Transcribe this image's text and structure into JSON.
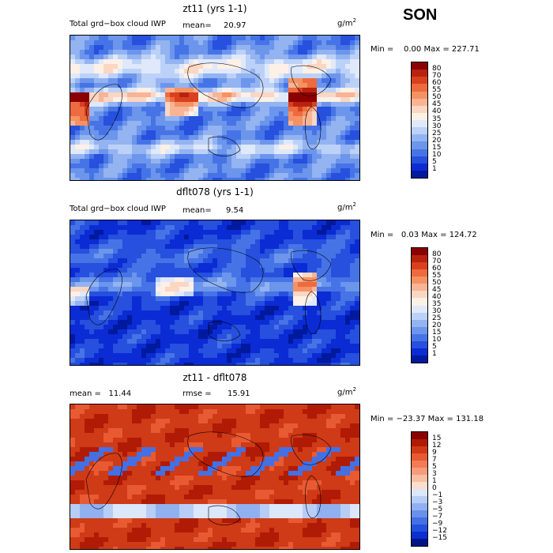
{
  "season": "SON",
  "panels": [
    {
      "title": "zt11 (yrs 1-1)",
      "left_label": "Total grd−box cloud IWP",
      "stat_label": "mean=",
      "stat_value": "20.97",
      "units": "g/m",
      "units_exp": "2",
      "minmax": "Min =    0.00 Max = 227.71",
      "palette": "abs",
      "colorbar_labels": [
        "80",
        "70",
        "60",
        "55",
        "50",
        "45",
        "40",
        "35",
        "30",
        "25",
        "20",
        "15",
        "10",
        "5",
        "1"
      ],
      "colors": [
        "#8b0000",
        "#b8220f",
        "#d9401e",
        "#ee6a3f",
        "#f49263",
        "#f8b494",
        "#fad6c3",
        "#fdf0e6",
        "#dfe9fb",
        "#bcd1f7",
        "#93b3f1",
        "#6c95ec",
        "#4674e6",
        "#2650dd",
        "#0b2bd4",
        "#001a9e"
      ]
    },
    {
      "title": "dflt078 (yrs 1-1)",
      "left_label": "Total grd−box cloud IWP",
      "stat_label": "mean=",
      "stat_value": "9.54",
      "units": "g/m",
      "units_exp": "2",
      "minmax": "Min =   0.03 Max = 124.72",
      "palette": "abs",
      "colorbar_labels": [
        "80",
        "70",
        "60",
        "55",
        "50",
        "45",
        "40",
        "35",
        "30",
        "25",
        "20",
        "15",
        "10",
        "5",
        "1"
      ],
      "colors": [
        "#8b0000",
        "#b8220f",
        "#d9401e",
        "#ee6a3f",
        "#f49263",
        "#f8b494",
        "#fad6c3",
        "#fdf0e6",
        "#dfe9fb",
        "#bcd1f7",
        "#93b3f1",
        "#6c95ec",
        "#4674e6",
        "#2650dd",
        "#0b2bd4",
        "#001a9e"
      ]
    },
    {
      "title": "zt11 - dflt078",
      "left_label": "mean =   11.44",
      "stat_label": "rmse =",
      "stat_value": "15.91",
      "units": "g/m",
      "units_exp": "2",
      "minmax": "Min = −23.37 Max = 131.18",
      "palette": "diff",
      "colorbar_labels": [
        "15",
        "12",
        "9",
        "7",
        "5",
        "3",
        "1",
        "0",
        "−1",
        "−3",
        "−5",
        "−7",
        "−9",
        "−12",
        "−15"
      ],
      "colors": [
        "#8b0000",
        "#b01b06",
        "#cf3a17",
        "#e85a32",
        "#f27b55",
        "#f69c7a",
        "#f9bea3",
        "#fcdccc",
        "#dbe7fb",
        "#b7cdf6",
        "#90b0f0",
        "#6990ea",
        "#4470e4",
        "#2350dc",
        "#0b30cf",
        "#00148a"
      ]
    }
  ]
}
